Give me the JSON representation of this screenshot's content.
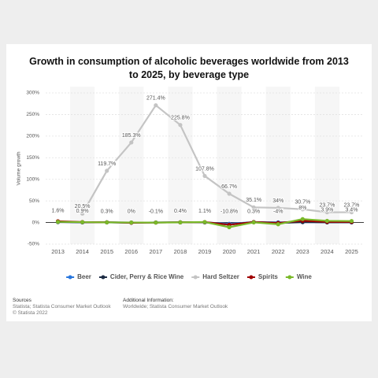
{
  "chart_data": {
    "type": "line",
    "title": "Growth in consumption of alcoholic beverages worldwide from 2013 to 2025, by beverage type",
    "y_label": "Volume growth",
    "categories": [
      "2013",
      "2014",
      "2015",
      "2016",
      "2017",
      "2018",
      "2019",
      "2020",
      "2021",
      "2022",
      "2023",
      "2024",
      "2025"
    ],
    "ylim": [
      -50,
      300
    ],
    "yticks": [
      {
        "value": -50,
        "label": "-50%"
      },
      {
        "value": 0,
        "label": "0%"
      },
      {
        "value": 50,
        "label": "50%"
      },
      {
        "value": 100,
        "label": "100%"
      },
      {
        "value": 150,
        "label": "150%"
      },
      {
        "value": 200,
        "label": "200%"
      },
      {
        "value": 250,
        "label": "250%"
      },
      {
        "value": 300,
        "label": "300%"
      }
    ],
    "grid": true,
    "series": [
      {
        "name": "Beer",
        "color": "#2876dd",
        "values": [
          1.5,
          0.5,
          0.3,
          -0.5,
          0.2,
          0.3,
          0.5,
          -3,
          1,
          0.5,
          1,
          0.5,
          0.5
        ]
      },
      {
        "name": "Cider, Perry & Rice Wine",
        "color": "#1d2c44",
        "values": [
          1,
          0.5,
          0.5,
          0,
          0,
          0.5,
          0.5,
          -5,
          1,
          -1,
          1,
          0.5,
          0.5
        ]
      },
      {
        "name": "Hard Seltzer",
        "color": "#c4c4c4",
        "values": [
          null,
          20.5,
          119.7,
          185.3,
          271.4,
          225.8,
          107.8,
          66.7,
          35.1,
          34,
          30.7,
          23.7,
          23.7
        ],
        "value_labels": [
          null,
          "20.5%",
          "119.7%",
          "185.3%",
          "271.4%",
          "225.8%",
          "107.8%",
          "66.7%",
          "35.1%",
          "34%",
          "30.7%",
          "23.7%",
          "23.7%"
        ]
      },
      {
        "name": "Spirits",
        "color": "#a00000",
        "values": [
          3,
          1,
          0.5,
          -0.5,
          0,
          0.5,
          1,
          -5,
          1,
          -1,
          4,
          1.5,
          1.5
        ]
      },
      {
        "name": "Wine",
        "color": "#7ab929",
        "values": [
          1.6,
          0.9,
          0.3,
          0,
          -0.1,
          0.4,
          1.1,
          -10.8,
          0.3,
          -4,
          8,
          3.9,
          3.4
        ],
        "value_labels": [
          "1.6%",
          "0.9%",
          "0.3%",
          "0%",
          "-0.1%",
          "0.4%",
          "1.1%",
          "-10.8%",
          "0.3%",
          "-4%",
          "8%",
          "3.9%",
          "3.4%"
        ]
      }
    ],
    "sources_title": "Sources",
    "sources": [
      "Statista; Statista Consumer Market Outlook",
      "© Statista 2022"
    ],
    "additional_title": "Additional Information:",
    "additional": "Worldwide; Statista Consumer Market Outlook"
  }
}
